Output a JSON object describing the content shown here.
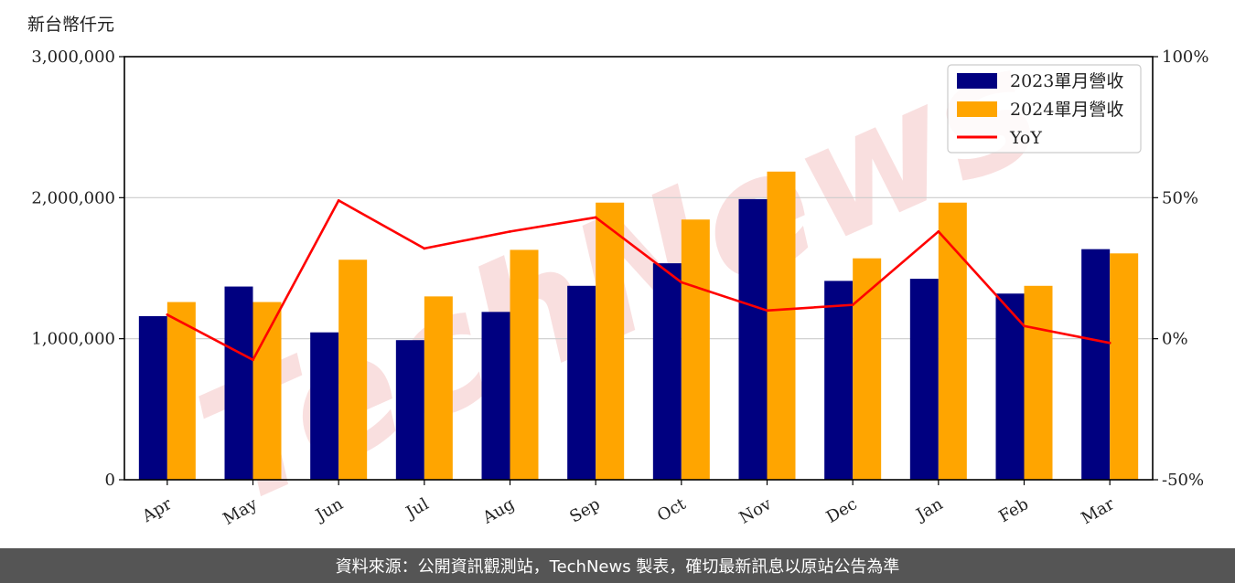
{
  "unit_label": "新台幣仟元",
  "footer": "資料來源：公開資訊觀測站，TechNews 製表，確切最新訊息以原站公告為準",
  "watermark": "TechNews",
  "colors": {
    "series_2023": "#000080",
    "series_2024": "#FFA500",
    "yoy": "#FF0000",
    "grid": "#cccccc",
    "footer_bg": "#555555",
    "watermark": "#f2b8b8"
  },
  "chart_data": {
    "type": "bar",
    "categories": [
      "Apr",
      "May",
      "Jun",
      "Jul",
      "Aug",
      "Sep",
      "Oct",
      "Nov",
      "Dec",
      "Jan",
      "Feb",
      "Mar"
    ],
    "series": [
      {
        "name": "2023單月營收",
        "values": [
          1160000,
          1370000,
          1045000,
          990000,
          1190000,
          1375000,
          1535000,
          1990000,
          1410000,
          1425000,
          1320000,
          1635000
        ]
      },
      {
        "name": "2024單月營收",
        "values": [
          1260000,
          1260000,
          1560000,
          1300000,
          1630000,
          1965000,
          1845000,
          2185000,
          1570000,
          1965000,
          1375000,
          1605000
        ]
      }
    ],
    "line_series": {
      "name": "YoY",
      "values": [
        8.5,
        -7.5,
        49,
        32,
        38,
        43,
        20,
        10,
        12,
        38,
        4.5,
        -1.5
      ]
    },
    "ylim": [
      0,
      3000000
    ],
    "yticks": [
      0,
      1000000,
      2000000,
      3000000
    ],
    "ytick_labels": [
      "0",
      "1,000,000",
      "2,000,000",
      "3,000,000"
    ],
    "y2lim": [
      -50,
      100
    ],
    "y2ticks": [
      -50,
      0,
      50,
      100
    ],
    "y2tick_labels": [
      "-50%",
      "0%",
      "50%",
      "100%"
    ],
    "grid": "horizontal",
    "legend_position": "top-right",
    "title": "",
    "xlabel": "",
    "ylabel": ""
  }
}
